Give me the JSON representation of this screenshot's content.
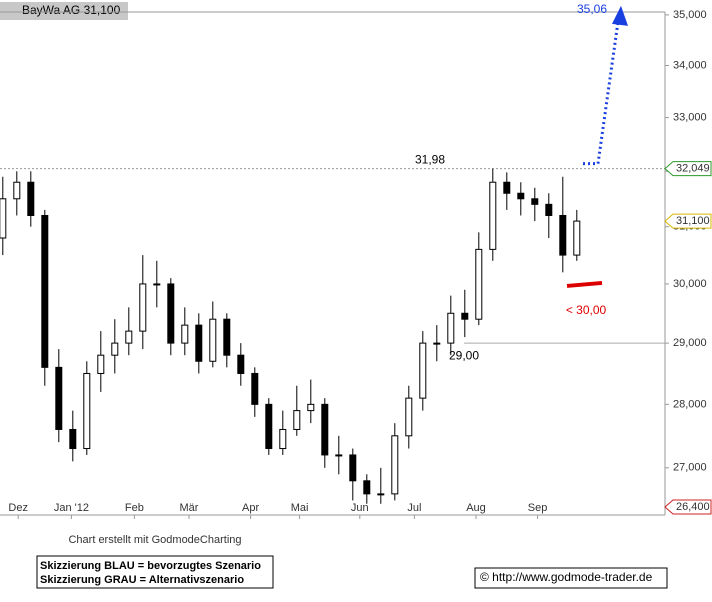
{
  "chart_data": {
    "type": "candlestick",
    "title": "BayWa AG 31,100",
    "color": "#000000",
    "log_scale": true,
    "x": [
      0,
      1,
      2,
      3,
      4,
      5,
      6,
      7,
      8,
      9,
      10,
      11,
      12,
      13,
      14,
      15,
      16,
      17,
      18,
      19,
      20,
      21,
      22,
      23,
      24,
      25,
      26,
      27,
      28,
      29,
      30,
      31,
      32,
      33,
      34,
      35,
      36,
      37,
      38,
      39,
      40,
      41
    ],
    "open": [
      30.8,
      31.5,
      31.8,
      31.2,
      28.6,
      27.6,
      27.3,
      28.5,
      28.8,
      29.0,
      29.2,
      30.0,
      30.0,
      29.0,
      29.3,
      28.7,
      29.4,
      28.8,
      28.5,
      28.0,
      27.3,
      27.6,
      27.9,
      28.0,
      27.2,
      27.2,
      26.8,
      26.6,
      26.6,
      27.5,
      28.1,
      29.0,
      29.0,
      29.5,
      29.4,
      30.6,
      31.8,
      31.6,
      31.5,
      31.4,
      31.2,
      30.5
    ],
    "high": [
      31.9,
      32.0,
      32.0,
      31.3,
      28.9,
      27.9,
      28.7,
      29.2,
      29.4,
      29.6,
      30.5,
      30.4,
      30.1,
      29.6,
      29.5,
      29.7,
      29.5,
      29.0,
      28.6,
      28.1,
      27.9,
      28.3,
      28.4,
      28.1,
      27.5,
      27.3,
      26.9,
      27.0,
      27.7,
      28.3,
      29.2,
      29.3,
      29.8,
      29.9,
      30.9,
      32.05,
      31.98,
      31.8,
      31.7,
      31.6,
      31.9,
      31.3
    ],
    "low": [
      30.5,
      31.2,
      31.0,
      28.3,
      27.4,
      27.1,
      27.2,
      28.2,
      28.5,
      28.8,
      28.9,
      29.6,
      28.8,
      28.8,
      28.5,
      28.6,
      28.6,
      28.3,
      27.8,
      27.2,
      27.2,
      27.5,
      27.7,
      27.0,
      26.9,
      26.5,
      26.45,
      26.45,
      26.5,
      27.3,
      27.9,
      28.7,
      28.8,
      29.1,
      29.3,
      30.4,
      31.3,
      31.2,
      31.1,
      30.8,
      30.2,
      30.4
    ],
    "close": [
      31.5,
      31.8,
      31.2,
      28.6,
      27.6,
      27.3,
      28.5,
      28.8,
      29.0,
      29.2,
      30.0,
      30.0,
      29.0,
      29.3,
      28.7,
      29.4,
      28.8,
      28.5,
      28.0,
      27.3,
      27.6,
      27.9,
      28.0,
      27.2,
      27.2,
      26.8,
      26.6,
      26.6,
      27.5,
      28.1,
      29.0,
      29.0,
      29.5,
      29.4,
      30.6,
      31.8,
      31.6,
      31.5,
      31.4,
      31.2,
      30.5,
      31.1
    ],
    "xlim": [
      -0.2,
      47.3
    ],
    "xticks": [
      {
        "value": 1.1,
        "label": "Dez"
      },
      {
        "value": 4.9,
        "label": "Jan '12"
      },
      {
        "value": 9.4,
        "label": "Feb"
      },
      {
        "value": 13.3,
        "label": "Mär"
      },
      {
        "value": 17.7,
        "label": "Apr"
      },
      {
        "value": 21.2,
        "label": "Mai"
      },
      {
        "value": 25.5,
        "label": "Jun"
      },
      {
        "value": 29.4,
        "label": "Jul"
      },
      {
        "value": 33.8,
        "label": "Aug"
      },
      {
        "value": 38.2,
        "label": "Sep"
      }
    ],
    "ylim": [
      26.28,
      35.3
    ],
    "yticks": [
      {
        "value": 27,
        "label": "27,000"
      },
      {
        "value": 28,
        "label": "28,000"
      },
      {
        "value": 29,
        "label": "29,000"
      },
      {
        "value": 30,
        "label": "30,000"
      },
      {
        "value": 31,
        "label": "31,000"
      },
      {
        "value": 32,
        "label": "32,000"
      },
      {
        "value": 33,
        "label": "33,000"
      },
      {
        "value": 34,
        "label": "34,000"
      },
      {
        "value": 35,
        "label": "35,000"
      }
    ],
    "price_markers": [
      {
        "value": 32.049,
        "label": "32,049",
        "color": "#2a9a2a"
      },
      {
        "value": 31.1,
        "label": "31,100",
        "color": "#d8b800"
      },
      {
        "value": 26.4,
        "label": "26,400",
        "color": "#cc2222"
      }
    ],
    "annotations": [
      {
        "text": "31,98",
        "value": 31.98,
        "color": "#000000"
      },
      {
        "text": "29,00",
        "value": 29.0,
        "color": "#000000"
      },
      {
        "text": "35,06",
        "value": 35.06,
        "color": "#1a3fe0"
      },
      {
        "text": "< 30,00",
        "value": 30.0,
        "color": "#dd0000"
      }
    ],
    "footer": {
      "credit": "Chart erstellt mit GodmodeCharting",
      "legend_blue": "Skizzierung BLAU = bevorzugtes Szenario",
      "legend_gray": "Skizzierung GRAU = Alternativszenario",
      "copyright": "© http://www.godmode-trader.de"
    }
  }
}
